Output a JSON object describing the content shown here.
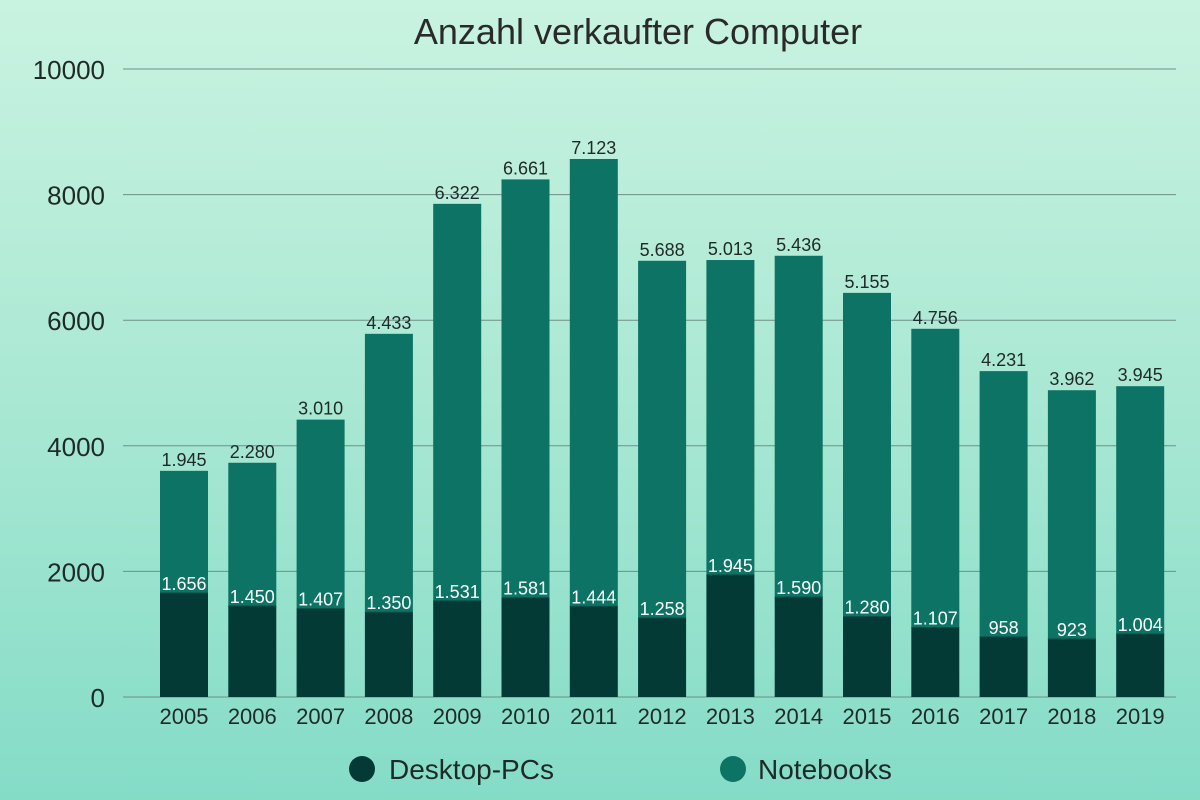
{
  "chart_data": {
    "type": "bar",
    "stacked": true,
    "title": "Anzahl verkaufter Computer",
    "xlabel": "",
    "ylabel": "",
    "ylim": [
      0,
      10000
    ],
    "yticks": [
      0,
      2000,
      4000,
      6000,
      8000,
      10000
    ],
    "grid": true,
    "legend_position": "bottom",
    "categories": [
      "2005",
      "2006",
      "2007",
      "2008",
      "2009",
      "2010",
      "2011",
      "2012",
      "2013",
      "2014",
      "2015",
      "2016",
      "2017",
      "2018",
      "2019"
    ],
    "series": [
      {
        "name": "Desktop-PCs",
        "color": "#043a36",
        "values": [
          1656,
          1450,
          1407,
          1350,
          1531,
          1581,
          1444,
          1258,
          1945,
          1590,
          1280,
          1107,
          958,
          923,
          1004
        ],
        "labels": [
          "1.656",
          "1.450",
          "1.407",
          "1.350",
          "1.531",
          "1.581",
          "1.444",
          "1.258",
          "1.945",
          "1.590",
          "1.280",
          "1.107",
          "958",
          "923",
          "1.004"
        ]
      },
      {
        "name": "Notebooks",
        "color": "#0c7365",
        "values": [
          1945,
          2280,
          3010,
          4433,
          6322,
          6661,
          7123,
          5688,
          5013,
          5436,
          5155,
          4756,
          4231,
          3962,
          3945
        ],
        "labels": [
          "1.945",
          "2.280",
          "3.010",
          "4.433",
          "6.322",
          "6.661",
          "7.123",
          "5.688",
          "5.013",
          "5.436",
          "5.155",
          "4.756",
          "4.231",
          "3.962",
          "3.945"
        ]
      }
    ],
    "colors": {
      "grid": "#6e8f86",
      "text": "#1f2a28",
      "inner_label": "#ffffff"
    }
  }
}
